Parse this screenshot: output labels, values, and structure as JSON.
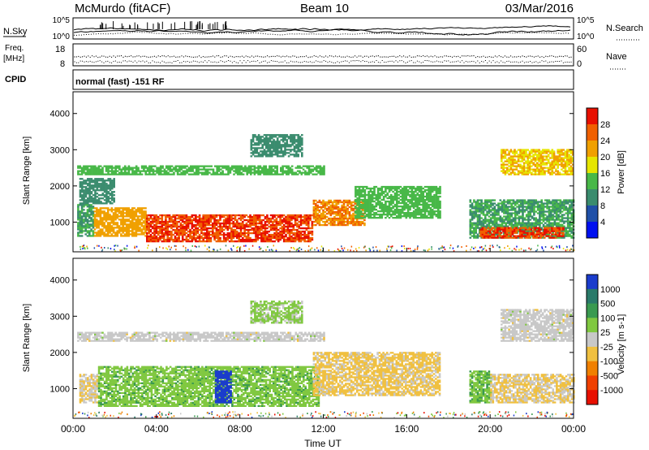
{
  "header": {
    "station": "McMurdo (fitACF)",
    "beam": "Beam 10",
    "date": "03/Mar/2016"
  },
  "top_panel": {
    "left_label": "N.Sky",
    "right_label": "N.Search",
    "left_ticks": [
      "10^5",
      "10^0"
    ],
    "right_ticks": [
      "10^5",
      "10^0"
    ]
  },
  "freq_panel": {
    "label_line1": "Freq.",
    "label_line2": "[MHz]",
    "left_ticks": [
      "18",
      "8"
    ],
    "right_ticks": [
      "60",
      "0"
    ],
    "right_label": "Nave"
  },
  "cpid": {
    "label": "CPID",
    "mode": "normal (fast) -151 RF"
  },
  "x_axis": {
    "label": "Time UT",
    "ticks": [
      "00:00",
      "04:00",
      "08:00",
      "12:00",
      "16:00",
      "20:00",
      "00:00"
    ]
  },
  "colors": {
    "power": [
      "#0010f0",
      "#2050a8",
      "#3a8c6e",
      "#48b848",
      "#e6e600",
      "#f0a000",
      "#f06000",
      "#e81000"
    ],
    "velocity": [
      "#1a3ccc",
      "#2a7a6a",
      "#3a9a50",
      "#80c840",
      "#c8c8c8",
      "#f0c040",
      "#f08000",
      "#f04000",
      "#e81000"
    ]
  },
  "chart_data": [
    {
      "type": "heatmap",
      "name": "power",
      "ylabel": "Slant Range [km]",
      "xlabel": "",
      "xlim": [
        0,
        24
      ],
      "ylim": [
        180,
        4600
      ],
      "yticks": [
        "1000",
        "2000",
        "3000",
        "4000"
      ],
      "colorbar": {
        "label": "Power [dB]",
        "ticks": [
          "4",
          "8",
          "12",
          "16",
          "20",
          "24",
          "28"
        ],
        "range": [
          0,
          32
        ]
      },
      "regions": [
        {
          "t0": 0.2,
          "t1": 12.0,
          "r0": 2300,
          "r1": 2550,
          "value": 14
        },
        {
          "t0": 0.2,
          "t1": 1.0,
          "r0": 600,
          "r1": 1500,
          "value": 12
        },
        {
          "t0": 1.0,
          "t1": 3.5,
          "r0": 600,
          "r1": 1400,
          "value": 22
        },
        {
          "t0": 3.5,
          "t1": 11.5,
          "r0": 450,
          "r1": 1200,
          "value": 28
        },
        {
          "t0": 11.5,
          "t1": 14.0,
          "r0": 900,
          "r1": 1600,
          "value": 24
        },
        {
          "t0": 13.5,
          "t1": 17.6,
          "r0": 1100,
          "r1": 2000,
          "value": 14
        },
        {
          "t0": 8.5,
          "t1": 11.0,
          "r0": 2800,
          "r1": 3400,
          "value": 10
        },
        {
          "t0": 19.0,
          "t1": 24.0,
          "r0": 550,
          "r1": 1600,
          "value": 12
        },
        {
          "t0": 19.5,
          "t1": 23.5,
          "r0": 550,
          "r1": 850,
          "value": 28
        },
        {
          "t0": 20.5,
          "t1": 24.0,
          "r0": 2300,
          "r1": 3000,
          "value": 20
        },
        {
          "t0": 0.3,
          "t1": 2.0,
          "r0": 1500,
          "r1": 2200,
          "value": 10
        }
      ]
    },
    {
      "type": "heatmap",
      "name": "velocity",
      "ylabel": "Slant Range [km]",
      "xlabel": "Time UT",
      "xlim": [
        0,
        24
      ],
      "ylim": [
        180,
        4600
      ],
      "yticks": [
        "1000",
        "2000",
        "3000",
        "4000"
      ],
      "colorbar": {
        "label": "Velocity [m s-1]",
        "ticks": [
          "1000",
          "500",
          "100",
          "25",
          "-25",
          "-100",
          "-500",
          "-1000"
        ],
        "range": [
          -1200,
          1200
        ]
      },
      "regions": [
        {
          "t0": 0.2,
          "t1": 12.0,
          "r0": 2300,
          "r1": 2550,
          "value": 0
        },
        {
          "t0": 0.3,
          "t1": 1.2,
          "r0": 600,
          "r1": 1400,
          "value": -120
        },
        {
          "t0": 1.2,
          "t1": 11.8,
          "r0": 500,
          "r1": 1600,
          "value": 300
        },
        {
          "t0": 6.8,
          "t1": 7.6,
          "r0": 600,
          "r1": 1500,
          "value": 1100
        },
        {
          "t0": 11.5,
          "t1": 17.6,
          "r0": 800,
          "r1": 2000,
          "value": -200
        },
        {
          "t0": 8.5,
          "t1": 11.0,
          "r0": 2800,
          "r1": 3400,
          "value": 200
        },
        {
          "t0": 19.0,
          "t1": 20.0,
          "r0": 600,
          "r1": 1500,
          "value": 350
        },
        {
          "t0": 20.0,
          "t1": 24.0,
          "r0": 600,
          "r1": 1400,
          "value": -150
        },
        {
          "t0": 20.5,
          "t1": 24.0,
          "r0": 2300,
          "r1": 3200,
          "value": 0
        }
      ]
    }
  ]
}
